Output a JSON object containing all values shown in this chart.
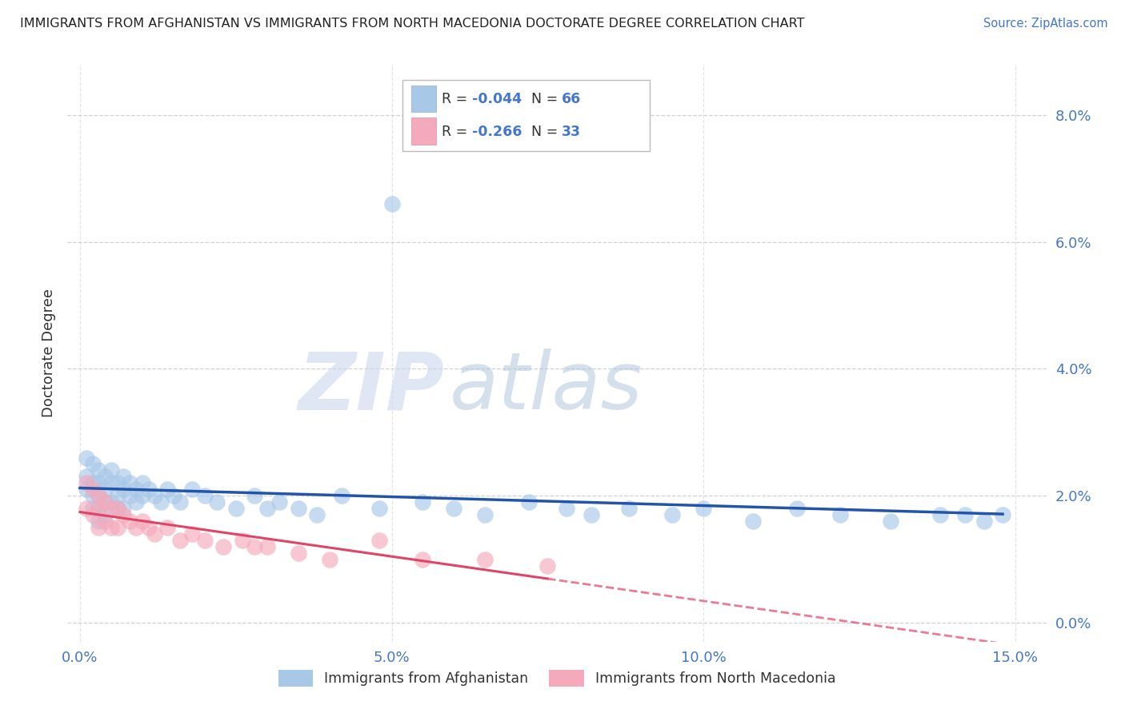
{
  "title": "IMMIGRANTS FROM AFGHANISTAN VS IMMIGRANTS FROM NORTH MACEDONIA DOCTORATE DEGREE CORRELATION CHART",
  "source": "Source: ZipAtlas.com",
  "ylabel": "Doctorate Degree",
  "xlim": [
    -0.002,
    0.155
  ],
  "ylim": [
    -0.003,
    0.088
  ],
  "x_ticks": [
    0.0,
    0.05,
    0.1,
    0.15
  ],
  "y_ticks": [
    0.0,
    0.02,
    0.04,
    0.06,
    0.08
  ],
  "afghanistan_R": -0.044,
  "afghanistan_N": 66,
  "macedonia_R": -0.266,
  "macedonia_N": 33,
  "afghanistan_color": "#a8c8e8",
  "macedonia_color": "#f4aabb",
  "afghanistan_line_color": "#2255aa",
  "macedonia_line_color": "#e04466",
  "watermark_zip": "ZIP",
  "watermark_atlas": "atlas",
  "background_color": "#ffffff",
  "grid_color": "#cccccc",
  "tick_color": "#4477cc",
  "legend_label_af": "Immigrants from Afghanistan",
  "legend_label_ma": "Immigrants from North Macedonia",
  "afghanistan_x": [
    0.001,
    0.001,
    0.001,
    0.002,
    0.002,
    0.002,
    0.002,
    0.003,
    0.003,
    0.003,
    0.003,
    0.003,
    0.004,
    0.004,
    0.004,
    0.004,
    0.005,
    0.005,
    0.005,
    0.006,
    0.006,
    0.006,
    0.007,
    0.007,
    0.007,
    0.008,
    0.008,
    0.009,
    0.009,
    0.01,
    0.01,
    0.011,
    0.012,
    0.013,
    0.014,
    0.015,
    0.016,
    0.018,
    0.02,
    0.022,
    0.025,
    0.028,
    0.03,
    0.032,
    0.035,
    0.038,
    0.042,
    0.048,
    0.055,
    0.06,
    0.065,
    0.072,
    0.078,
    0.082,
    0.088,
    0.095,
    0.1,
    0.108,
    0.115,
    0.122,
    0.13,
    0.138,
    0.142,
    0.145,
    0.148,
    0.05
  ],
  "afghanistan_y": [
    0.026,
    0.023,
    0.021,
    0.025,
    0.022,
    0.02,
    0.018,
    0.024,
    0.022,
    0.02,
    0.018,
    0.016,
    0.023,
    0.021,
    0.019,
    0.017,
    0.024,
    0.022,
    0.019,
    0.022,
    0.02,
    0.018,
    0.023,
    0.021,
    0.018,
    0.022,
    0.02,
    0.021,
    0.019,
    0.022,
    0.02,
    0.021,
    0.02,
    0.019,
    0.021,
    0.02,
    0.019,
    0.021,
    0.02,
    0.019,
    0.018,
    0.02,
    0.018,
    0.019,
    0.018,
    0.017,
    0.02,
    0.018,
    0.019,
    0.018,
    0.017,
    0.019,
    0.018,
    0.017,
    0.018,
    0.017,
    0.018,
    0.016,
    0.018,
    0.017,
    0.016,
    0.017,
    0.017,
    0.016,
    0.017,
    0.066
  ],
  "macedonia_x": [
    0.001,
    0.001,
    0.002,
    0.002,
    0.003,
    0.003,
    0.003,
    0.004,
    0.004,
    0.005,
    0.005,
    0.006,
    0.006,
    0.007,
    0.008,
    0.009,
    0.01,
    0.011,
    0.012,
    0.014,
    0.016,
    0.018,
    0.02,
    0.023,
    0.026,
    0.028,
    0.03,
    0.035,
    0.04,
    0.048,
    0.055,
    0.065,
    0.075
  ],
  "macedonia_y": [
    0.022,
    0.018,
    0.021,
    0.017,
    0.02,
    0.018,
    0.015,
    0.019,
    0.016,
    0.018,
    0.015,
    0.018,
    0.015,
    0.017,
    0.016,
    0.015,
    0.016,
    0.015,
    0.014,
    0.015,
    0.013,
    0.014,
    0.013,
    0.012,
    0.013,
    0.012,
    0.012,
    0.011,
    0.01,
    0.013,
    0.01,
    0.01,
    0.009
  ]
}
